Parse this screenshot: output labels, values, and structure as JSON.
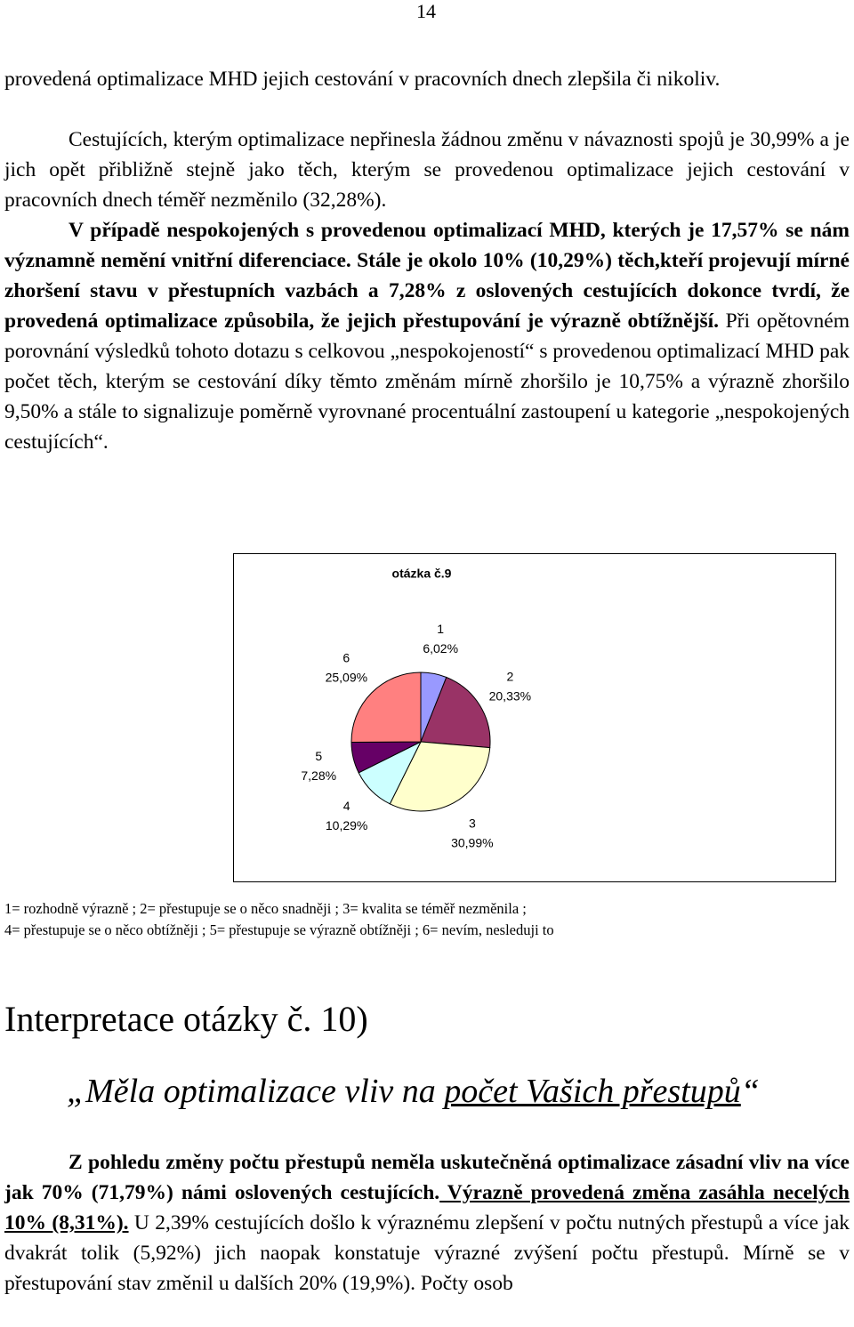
{
  "page_number": "14",
  "paragraph1": "provedená optimalizace MHD jejich cestování v pracovních dnech zlepšila či nikoliv.",
  "paragraph2": "Cestujících, kterým optimalizace nepřinesla žádnou změnu v návaznosti spojů je 30,99% a je jich opět přibližně stejně jako těch, kterým se provedenou optimalizace jejich cestování v pracovních dnech téměř nezměnilo (32,28%).",
  "paragraph3": [
    "V případě nespokojených s provedenou optimalizací MHD, kterých je 17,57% se nám významně nemění vnitřní diferenciace. Stále je okolo 10% (10,29%) těch,kteří projevují mírné zhoršení stavu v přestupních vazbách a 7,28% z oslovených cestujících dokonce tvrdí, že provedená optimalizace způsobila, že jejich přestupování je výrazně obtížnější.",
    " Při opětovném porovnání výsledků tohoto dotazu s celkovou „nespokojeností“ s provedenou optimalizací MHD pak počet těch, kterým se cestování díky těmto změnám mírně zhoršilo je 10,75% a výrazně zhoršilo 9,50% a stále to signalizuje poměrně vyrovnané procentuální zastoupení u kategorie „nespokojených cestujících“."
  ],
  "chart_data": {
    "type": "pie",
    "title": "otázka č.9",
    "categories": [
      "1",
      "2",
      "3",
      "4",
      "5",
      "6"
    ],
    "values": [
      6.02,
      20.33,
      30.99,
      10.29,
      7.28,
      25.09
    ],
    "value_labels": [
      "6,02%",
      "20,33%",
      "30,99%",
      "10,29%",
      "7,28%",
      "25,09%"
    ],
    "colors": [
      "#9999ff",
      "#993366",
      "#ffffcc",
      "#ccffff",
      "#660066",
      "#ff8080"
    ]
  },
  "legend_note": [
    "1= rozhodně výrazně ; 2= přestupuje se o něco snadněji ; 3= kvalita se téměř nezměnila ;",
    "4= přestupuje se o něco obtížněji ; 5= přestupuje se výrazně obtížněji ; 6= nevím, nesleduji to"
  ],
  "heading": "Interpretace otázky č. 10)",
  "subheading": [
    "„Měla optimalizace vliv na ",
    "počet Vašich přestupů",
    "“"
  ],
  "paragraph4": [
    "Z pohledu změny počtu přestupů neměla uskutečněná optimalizace zásadní vliv na více jak 70% (71,79%) námi oslovených cestujících.",
    " Výrazně provedená změna zasáhla necelých 10% (8,31%).",
    " U 2,39% cestujících došlo k výraznému zlepšení v počtu nutných přestupů a více jak dvakrát tolik (5,92%) jich naopak konstatuje výrazné zvýšení počtu přestupů. Mírně se v přestupování stav změnil u dalších 20% (19,9%). Počty osob"
  ]
}
